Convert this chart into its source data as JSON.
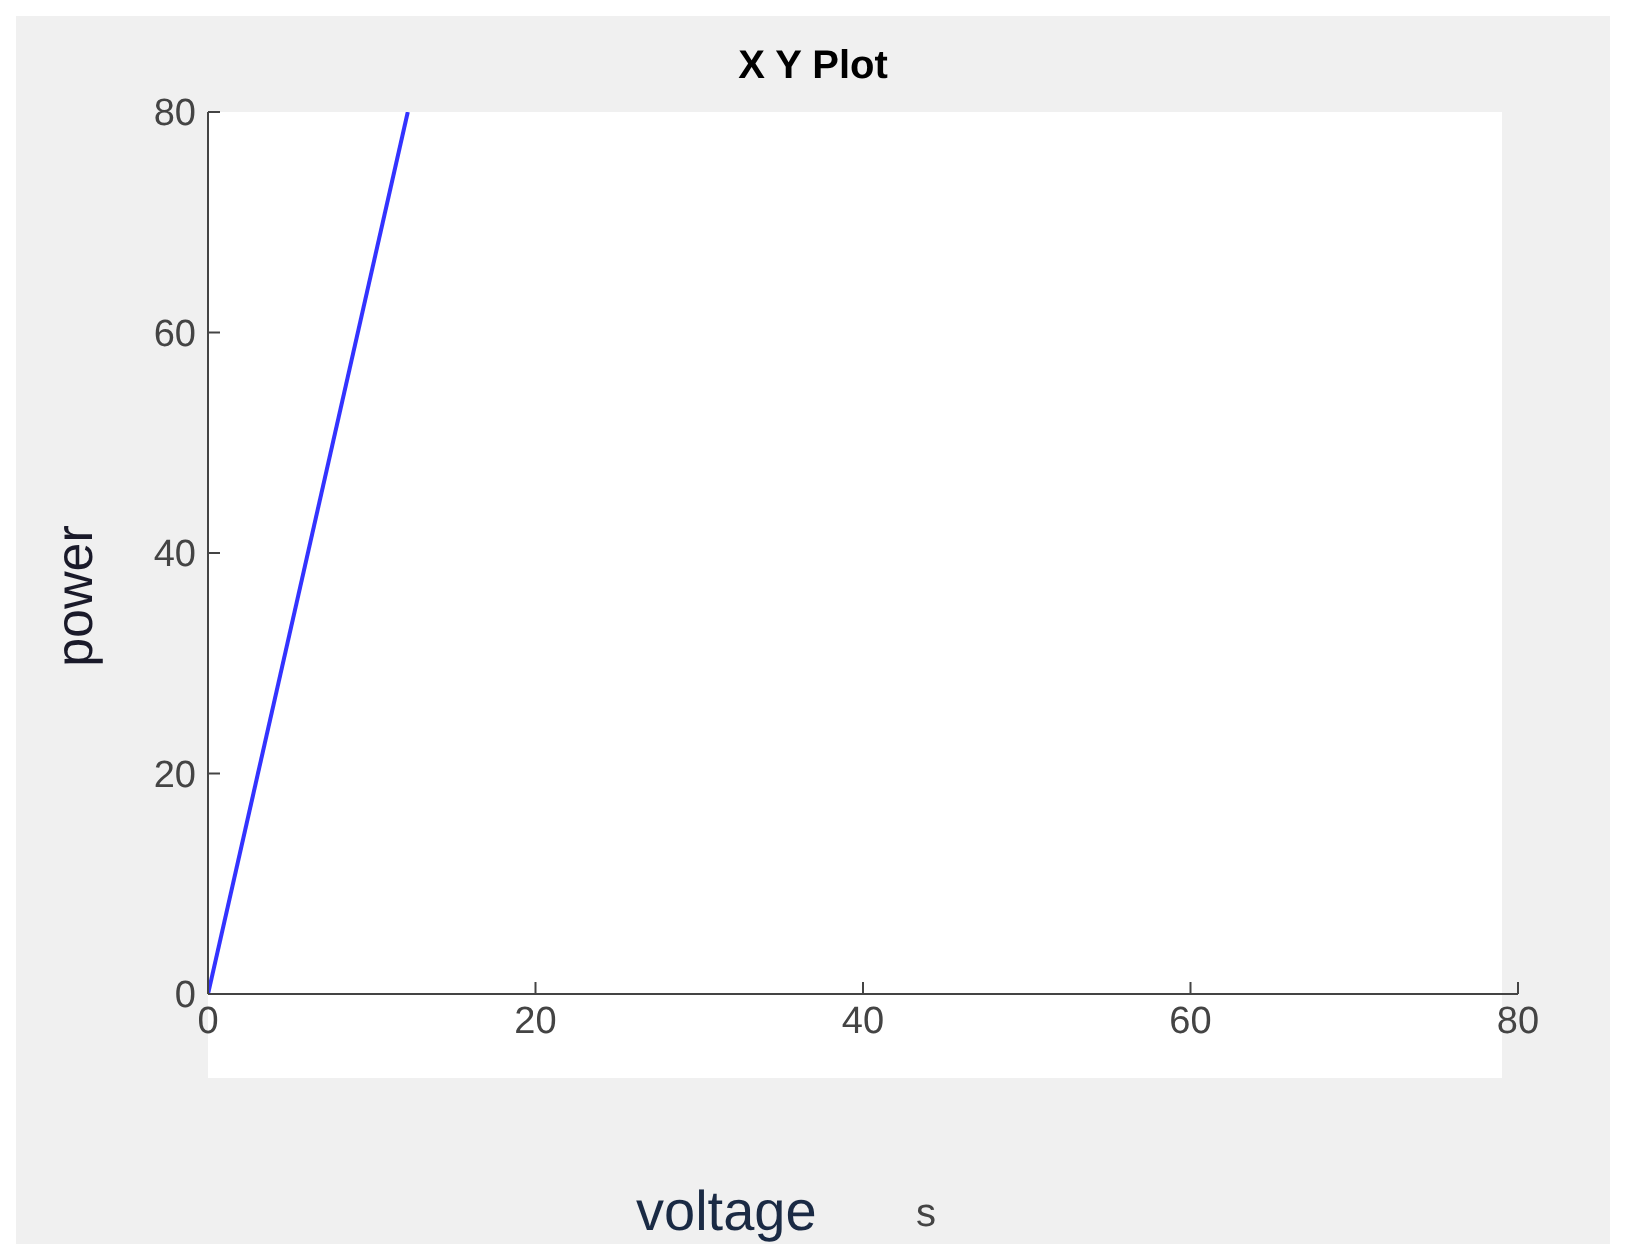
{
  "chart_data": {
    "type": "line",
    "title": "X Y Plot",
    "xlabel": "voltage",
    "ylabel": "power",
    "annotations": [
      "s"
    ],
    "x": [
      0,
      12.2
    ],
    "series": [
      {
        "color": "#3333ff",
        "values": [
          0,
          80
        ]
      }
    ],
    "xlim": [
      0,
      80
    ],
    "xticks": [
      0,
      20,
      40,
      60,
      80
    ],
    "ylim": [
      0,
      80
    ],
    "yticks": [
      0,
      20,
      40,
      60,
      80
    ],
    "grid": false,
    "legend": false,
    "marker": "none",
    "line_style": "solid"
  }
}
